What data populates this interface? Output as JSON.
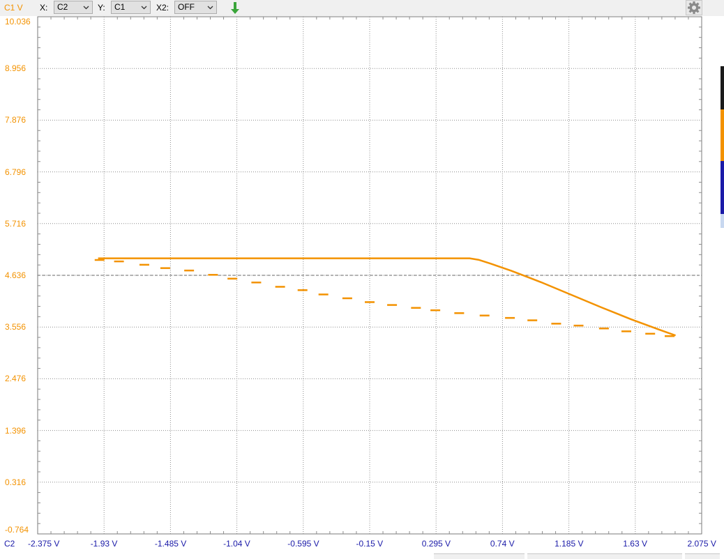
{
  "toolbar": {
    "y_unit_label": "C1 V",
    "x_label": "X:",
    "x_value": "C2",
    "y_label": "Y:",
    "y_value": "C1",
    "x2_label": "X2:",
    "x2_value": "OFF",
    "download_icon": "arrow-down-icon",
    "settings_icon": "gear-icon"
  },
  "axis": {
    "x_channel": "C2"
  },
  "colors": {
    "trace": "#f39200",
    "y_axis_text": "#f39200",
    "x_axis_text": "#1a1aa8",
    "grid": "#8c8c8c",
    "marker_orange": "#f39200",
    "marker_blue": "#1a1aa8"
  },
  "chart_data": {
    "type": "scatter",
    "xlabel": "C2",
    "ylabel": "C1 V",
    "x_ticks": [
      "-2.375 V",
      "-1.93 V",
      "-1.485 V",
      "-1.04 V",
      "-0.595 V",
      "-0.15 V",
      "0.295 V",
      "0.74 V",
      "1.185 V",
      "1.63 V",
      "2.075 V"
    ],
    "y_ticks": [
      "10.036",
      "8.956",
      "7.876",
      "6.796",
      "5.716",
      "4.636",
      "3.556",
      "2.476",
      "1.396",
      "0.316",
      "-0.764"
    ],
    "xlim": [
      -2.375,
      2.075
    ],
    "ylim": [
      -0.764,
      10.036
    ],
    "grid": true,
    "cursor_y": 4.636,
    "series": [
      {
        "values": [
          [
            -1.97,
            4.99
          ],
          [
            0.52,
            4.99
          ],
          [
            0.58,
            4.96
          ],
          [
            0.66,
            4.88
          ],
          [
            0.8,
            4.73
          ],
          [
            1.0,
            4.49
          ],
          [
            1.2,
            4.23
          ],
          [
            1.4,
            3.97
          ],
          [
            1.6,
            3.72
          ],
          [
            1.8,
            3.49
          ],
          [
            1.9,
            3.38
          ]
        ]
      },
      {
        "values": [
          [
            -1.96,
            4.96
          ],
          [
            -1.83,
            4.93
          ],
          [
            -1.66,
            4.86
          ],
          [
            -1.52,
            4.79
          ],
          [
            -1.36,
            4.74
          ],
          [
            -1.2,
            4.65
          ],
          [
            -1.07,
            4.57
          ],
          [
            -0.91,
            4.49
          ],
          [
            -0.75,
            4.4
          ],
          [
            -0.6,
            4.33
          ],
          [
            -0.46,
            4.24
          ],
          [
            -0.3,
            4.16
          ],
          [
            -0.15,
            4.08
          ],
          [
            0.0,
            4.02
          ],
          [
            0.16,
            3.96
          ],
          [
            0.29,
            3.91
          ],
          [
            0.45,
            3.85
          ],
          [
            0.62,
            3.8
          ],
          [
            0.79,
            3.75
          ],
          [
            0.94,
            3.7
          ],
          [
            1.1,
            3.63
          ],
          [
            1.25,
            3.59
          ],
          [
            1.42,
            3.53
          ],
          [
            1.57,
            3.47
          ],
          [
            1.73,
            3.42
          ],
          [
            1.86,
            3.37
          ]
        ]
      }
    ]
  }
}
